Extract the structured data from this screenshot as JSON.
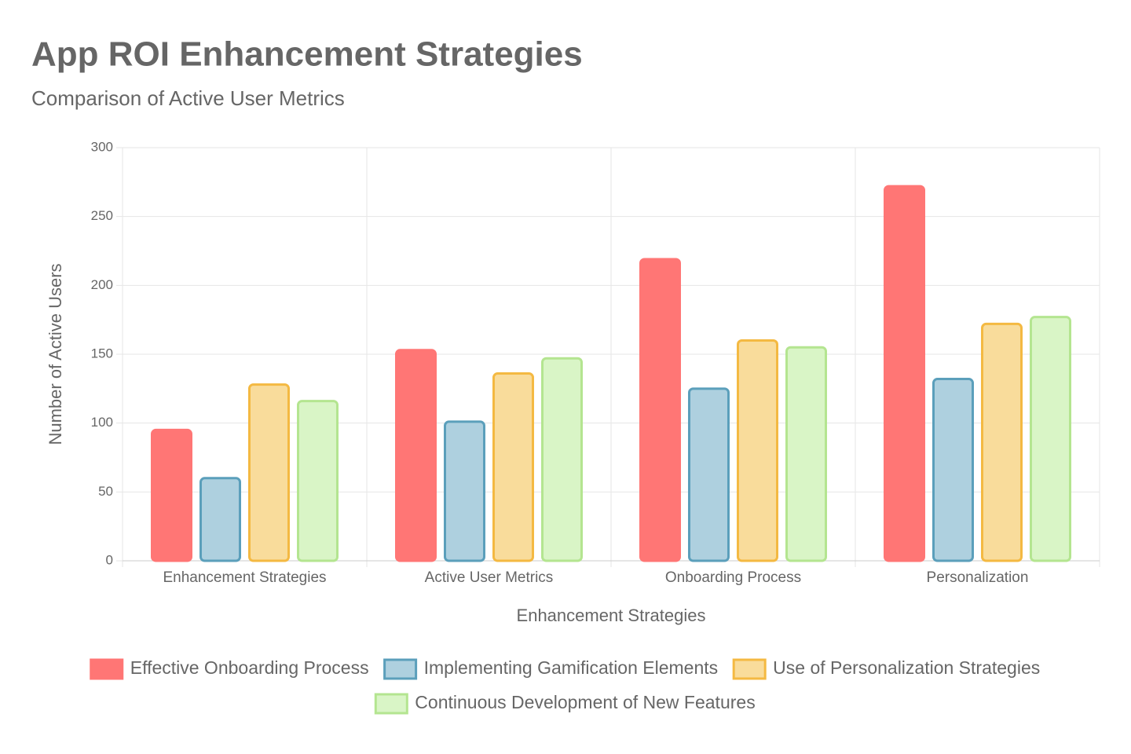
{
  "chart_data": {
    "type": "bar",
    "title": "App ROI Enhancement Strategies",
    "subtitle": "Comparison of Active User Metrics",
    "x_label": "Enhancement Strategies",
    "y_label": "Number of Active Users",
    "categories": [
      "Enhancement Strategies",
      "Active User Metrics",
      "Onboarding Process",
      "Personalization"
    ],
    "series": [
      {
        "name": "Effective Onboarding Process",
        "color": "#ff7675",
        "border_color": "#ff7675",
        "values": [
          95,
          153,
          219,
          272
        ]
      },
      {
        "name": "Implementing Gamification Elements",
        "color": "#aed0df",
        "border_color": "#5b9fbb",
        "values": [
          60,
          101,
          125,
          132
        ]
      },
      {
        "name": "Use of Personalization Strategies",
        "color": "#f9dc9b",
        "border_color": "#f4b942",
        "values": [
          128,
          136,
          160,
          172
        ]
      },
      {
        "name": "Continuous Development of New Features",
        "color": "#d9f5c6",
        "border_color": "#b4e590",
        "values": [
          116,
          147,
          155,
          177
        ]
      }
    ],
    "ylim": [
      0,
      300
    ],
    "yticks": [
      0,
      50,
      100,
      150,
      200,
      250,
      300
    ],
    "grid": true,
    "legend": "bottom"
  }
}
